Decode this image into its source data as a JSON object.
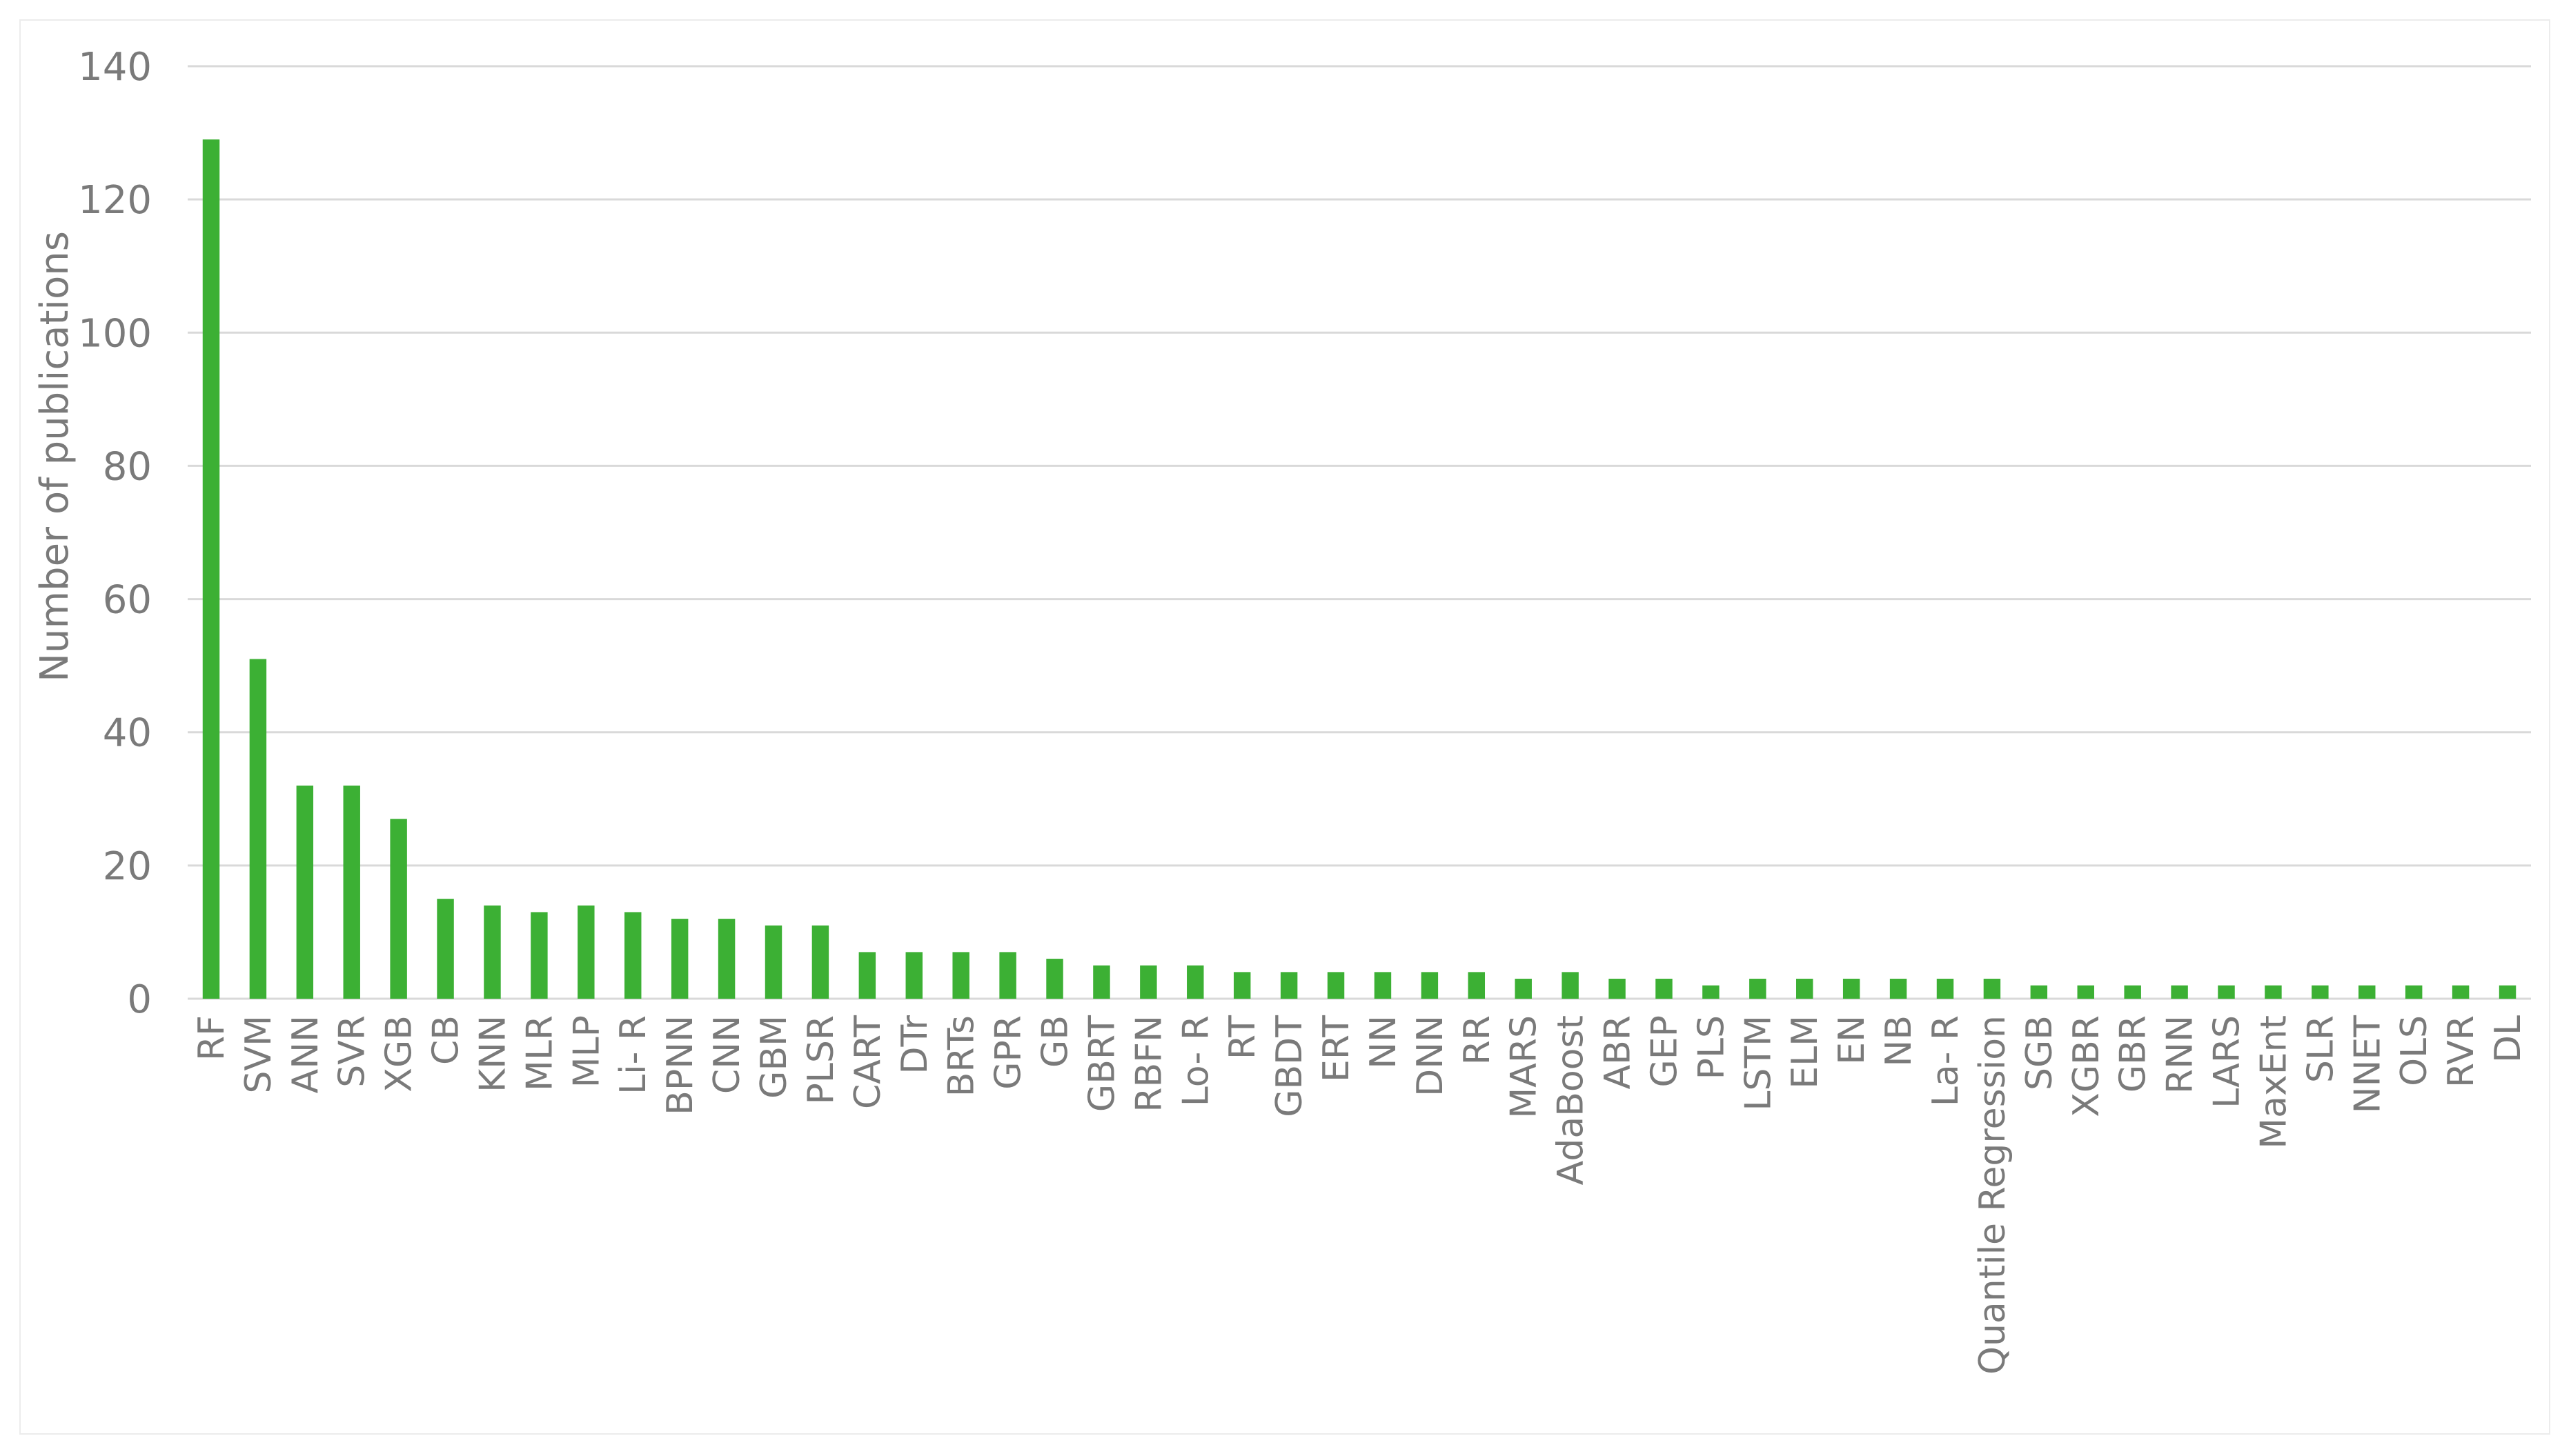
{
  "chart_data": {
    "type": "bar",
    "title": "",
    "xlabel": "",
    "ylabel": "Number of publications",
    "ylim": [
      0,
      140
    ],
    "yticks": [
      0,
      20,
      40,
      60,
      80,
      100,
      120,
      140
    ],
    "grid": true,
    "legend": "none",
    "color": "#3cb034",
    "categories": [
      "RF",
      "SVM",
      "ANN",
      "SVR",
      "XGB",
      "CB",
      "KNN",
      "MLR",
      "MLP",
      "Li- R",
      "BPNN",
      "CNN",
      "GBM",
      "PLSR",
      "CART",
      "DTr",
      "BRTs",
      "GPR",
      "GB",
      "GBRT",
      "RBFN",
      "Lo- R",
      "RT",
      "GBDT",
      "ERT",
      "NN",
      "DNN",
      "RR",
      "MARS",
      "AdaBoost",
      "ABR",
      "GEP",
      "PLS",
      "LSTM",
      "ELM",
      "EN",
      "NB",
      "La- R",
      "Quantile Regression",
      "SGB",
      "XGBR",
      "GBR",
      "RNN",
      "LARS",
      "MaxEnt",
      "SLR",
      "NNET",
      "OLS",
      "RVR",
      "DL"
    ],
    "values": [
      129,
      51,
      32,
      32,
      27,
      15,
      14,
      13,
      14,
      13,
      12,
      12,
      11,
      11,
      7,
      7,
      7,
      7,
      6,
      5,
      5,
      5,
      4,
      4,
      4,
      4,
      4,
      4,
      3,
      4,
      3,
      3,
      2,
      3,
      3,
      3,
      3,
      3,
      3,
      2,
      2,
      2,
      2,
      2,
      2,
      2,
      2,
      2,
      2,
      2
    ]
  }
}
